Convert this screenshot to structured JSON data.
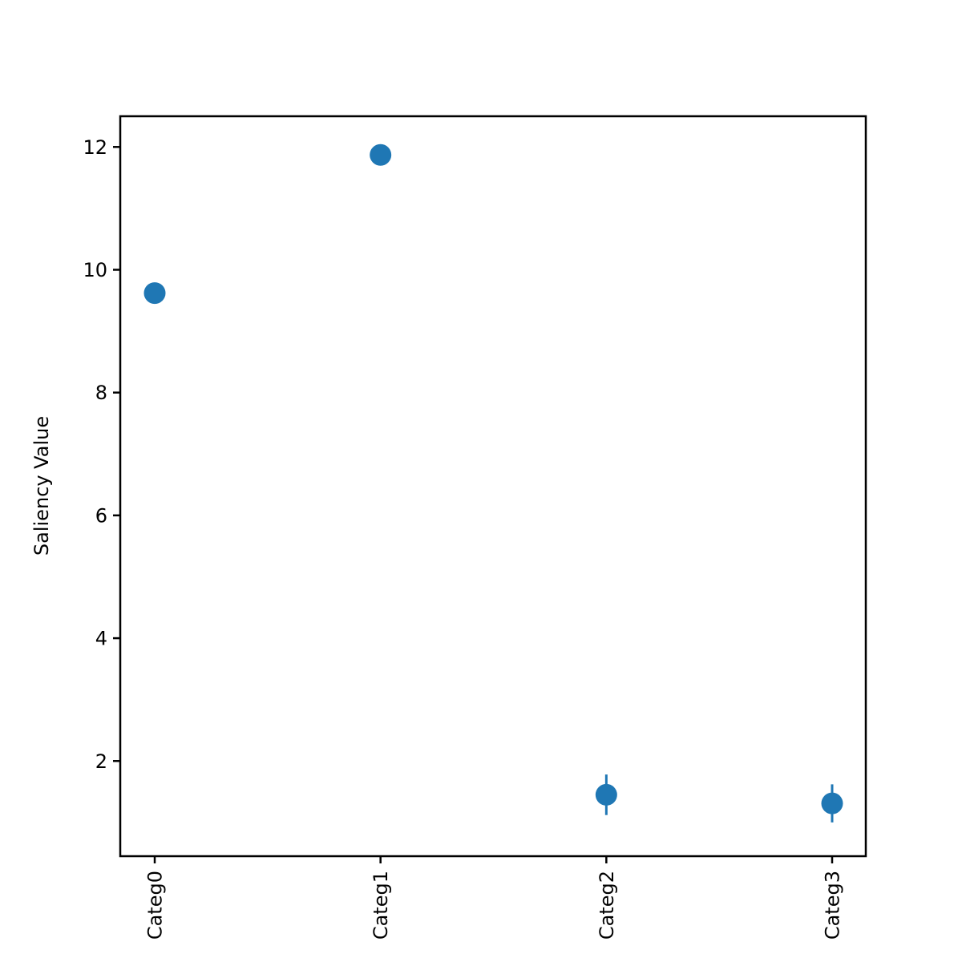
{
  "chart_data": {
    "type": "scatter",
    "title": "",
    "xlabel": "",
    "ylabel": "Saliency Value",
    "categories": [
      "Categ0",
      "Categ1",
      "Categ2",
      "Categ3"
    ],
    "values": [
      9.62,
      11.87,
      1.45,
      1.31
    ],
    "error": [
      0.02,
      0.02,
      0.33,
      0.31
    ],
    "ylim": [
      0.45,
      12.5
    ],
    "yticks": [
      2,
      4,
      6,
      8,
      10,
      12
    ],
    "grid": false,
    "legend": "none",
    "colors": {
      "marker": "#1f77b4",
      "axis": "#000000",
      "background": "#ffffff"
    }
  }
}
